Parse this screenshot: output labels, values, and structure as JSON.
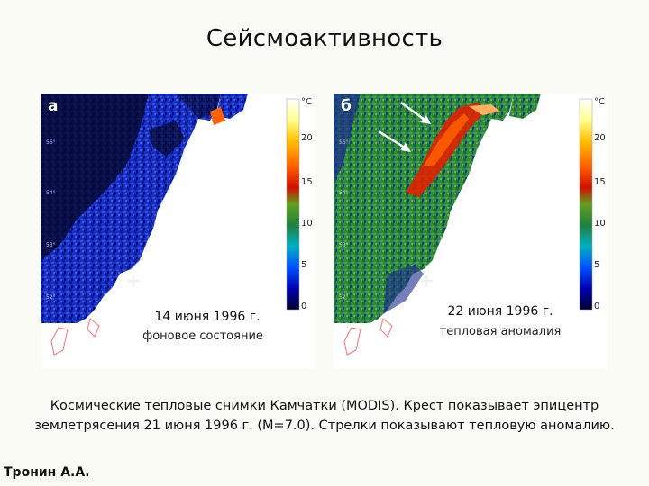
{
  "title": "Сейсмоактивность",
  "panels": [
    {
      "letter": "а",
      "date": "14 июня 1996 г.",
      "state": "фоновое состояние"
    },
    {
      "letter": "б",
      "date": "22 июня 1996 г.",
      "state": "тепловая аномалия"
    }
  ],
  "colorscale": {
    "unit": "°C",
    "ticks": [
      "20",
      "15",
      "10",
      "5",
      "0"
    ],
    "colors": [
      "#ffffff",
      "#ffffa0",
      "#ffd000",
      "#ff8000",
      "#e82000",
      "#a00000",
      "#40a020",
      "#208040",
      "#00c0c0",
      "#0060ff",
      "#0000c0",
      "#000040"
    ]
  },
  "caption": {
    "line1": "Космические тепловые снимки Камчатки (MODIS). Крест показывает эпицентр",
    "line2": "землетрясения 21 июня 1996 г. (M=7.0). Стрелки показывают тепловую аномалию."
  },
  "author": "Тронин А.А.",
  "epicenter_symbol": "+"
}
